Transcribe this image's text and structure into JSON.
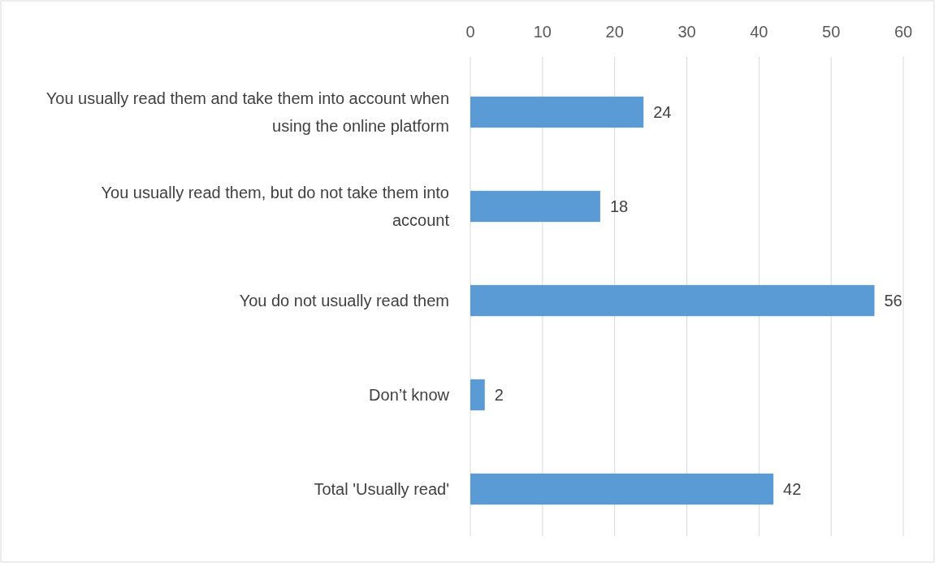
{
  "chart_data": {
    "type": "bar",
    "orientation": "horizontal",
    "categories": [
      "You usually read them and take them into account when using the online platform",
      "You usually read them, but do not take them into account",
      "You do not usually read them",
      "Don’t know",
      "Total 'Usually read'"
    ],
    "values": [
      24,
      18,
      56,
      2,
      42
    ],
    "color": "#5b9bd5",
    "xlim": [
      0,
      60
    ],
    "xticks": [
      0,
      10,
      20,
      30,
      40,
      50,
      60
    ],
    "grid": "x",
    "data_labels": true
  }
}
